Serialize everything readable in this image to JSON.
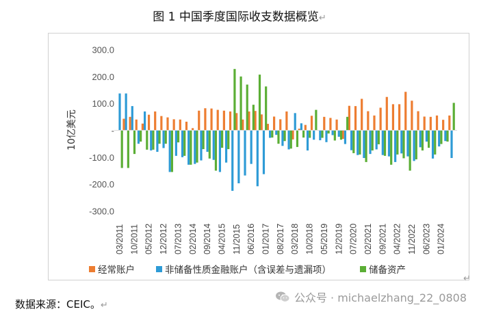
{
  "header": {
    "title": "图 1  中国季度国际收支数据概览",
    "title_mark": "↵"
  },
  "source": {
    "text": "数据来源：CEIC。",
    "mark": "↵"
  },
  "watermark": {
    "text": "公众号 · michaelzhang_22_0808",
    "icon": "wechat-icon"
  },
  "corner_mark": "↵",
  "colors": {
    "current_account": "#ED7D31",
    "financial_account": "#2E9BD6",
    "reserves": "#5BAE35"
  },
  "chart_data": {
    "type": "bar",
    "title": "",
    "ylabel": "10亿美元",
    "ylim": [
      -300,
      300
    ],
    "yticks": [
      300,
      200,
      100,
      0,
      -100,
      -200,
      -300
    ],
    "ytick_labels": [
      "300.0",
      "200.0",
      "100.0",
      "-",
      "-100.0",
      "-200.0",
      "-300.0"
    ],
    "grid": false,
    "legend_position": "bottom",
    "categories": [
      "03/2011",
      "06/2011",
      "09/2011",
      "12/2011",
      "03/2012",
      "06/2012",
      "09/2012",
      "12/2012",
      "03/2013",
      "06/2013",
      "09/2013",
      "12/2013",
      "03/2014",
      "06/2014",
      "09/2014",
      "12/2014",
      "03/2015",
      "06/2015",
      "09/2015",
      "12/2015",
      "03/2016",
      "06/2016",
      "09/2016",
      "12/2016",
      "03/2017",
      "06/2017",
      "09/2017",
      "12/2017",
      "03/2018",
      "06/2018",
      "09/2018",
      "12/2018",
      "03/2019",
      "06/2019",
      "09/2019",
      "12/2019",
      "03/2020",
      "06/2020",
      "09/2020",
      "12/2020",
      "03/2021",
      "06/2021",
      "09/2021",
      "12/2021",
      "03/2022",
      "06/2022",
      "09/2022",
      "12/2022",
      "03/2023",
      "06/2023",
      "09/2023",
      "12/2023",
      "03/2024",
      "06/2024"
    ],
    "x_tick_labels": [
      "03/2011",
      "10/2011",
      "05/2012",
      "12/2012",
      "07/2013",
      "02/2014",
      "09/2014",
      "04/2015",
      "11/2015",
      "06/2016",
      "01/2017",
      "08/2017",
      "03/2018",
      "10/2018",
      "05/2019",
      "12/2019",
      "07/2020",
      "02/2021",
      "09/2021",
      "04/2022",
      "11/2022",
      "06/2023",
      "01/2024"
    ],
    "series": [
      {
        "name": "经常账户",
        "values": [
          1,
          43,
          50,
          40,
          25,
          58,
          70,
          53,
          48,
          41,
          40,
          32,
          8,
          73,
          82,
          81,
          76,
          73,
          70,
          64,
          40,
          70,
          72,
          59,
          24,
          51,
          41,
          70,
          -34,
          6,
          20,
          54,
          0,
          50,
          46,
          40,
          -32,
          91,
          90,
          117,
          71,
          55,
          84,
          124,
          97,
          97,
          143,
          110,
          71,
          51,
          50,
          55,
          39,
          55
        ]
      },
      {
        "name": "非储备性质金融账户（含误差与遗漏项）",
        "values": [
          137,
          137,
          90,
          -50,
          70,
          -75,
          -80,
          -66,
          -155,
          -95,
          -100,
          -128,
          -125,
          -112,
          -80,
          -110,
          -155,
          -120,
          -225,
          -197,
          -168,
          -125,
          -208,
          -163,
          -28,
          -17,
          -58,
          -71,
          64,
          26,
          -75,
          -35,
          -37,
          -44,
          -18,
          -24,
          -51,
          -74,
          -92,
          -103,
          -88,
          -71,
          -92,
          -97,
          -118,
          -86,
          -97,
          -114,
          -63,
          -42,
          -105,
          -60,
          -40,
          -103
        ]
      },
      {
        "name": "储备资产",
        "values": [
          -140,
          -140,
          -88,
          -42,
          -72,
          -72,
          -50,
          -50,
          -155,
          -45,
          -95,
          -128,
          -120,
          -70,
          -105,
          -150,
          -65,
          -70,
          228,
          200,
          170,
          95,
          207,
          163,
          -27,
          -50,
          -40,
          -68,
          -62,
          -27,
          -28,
          76,
          -28,
          -12,
          -38,
          -35,
          50,
          -85,
          -90,
          -118,
          -75,
          -52,
          -95,
          -128,
          -90,
          -104,
          -150,
          -108,
          -75,
          -65,
          -90,
          -51,
          -42,
          102
        ]
      }
    ]
  }
}
